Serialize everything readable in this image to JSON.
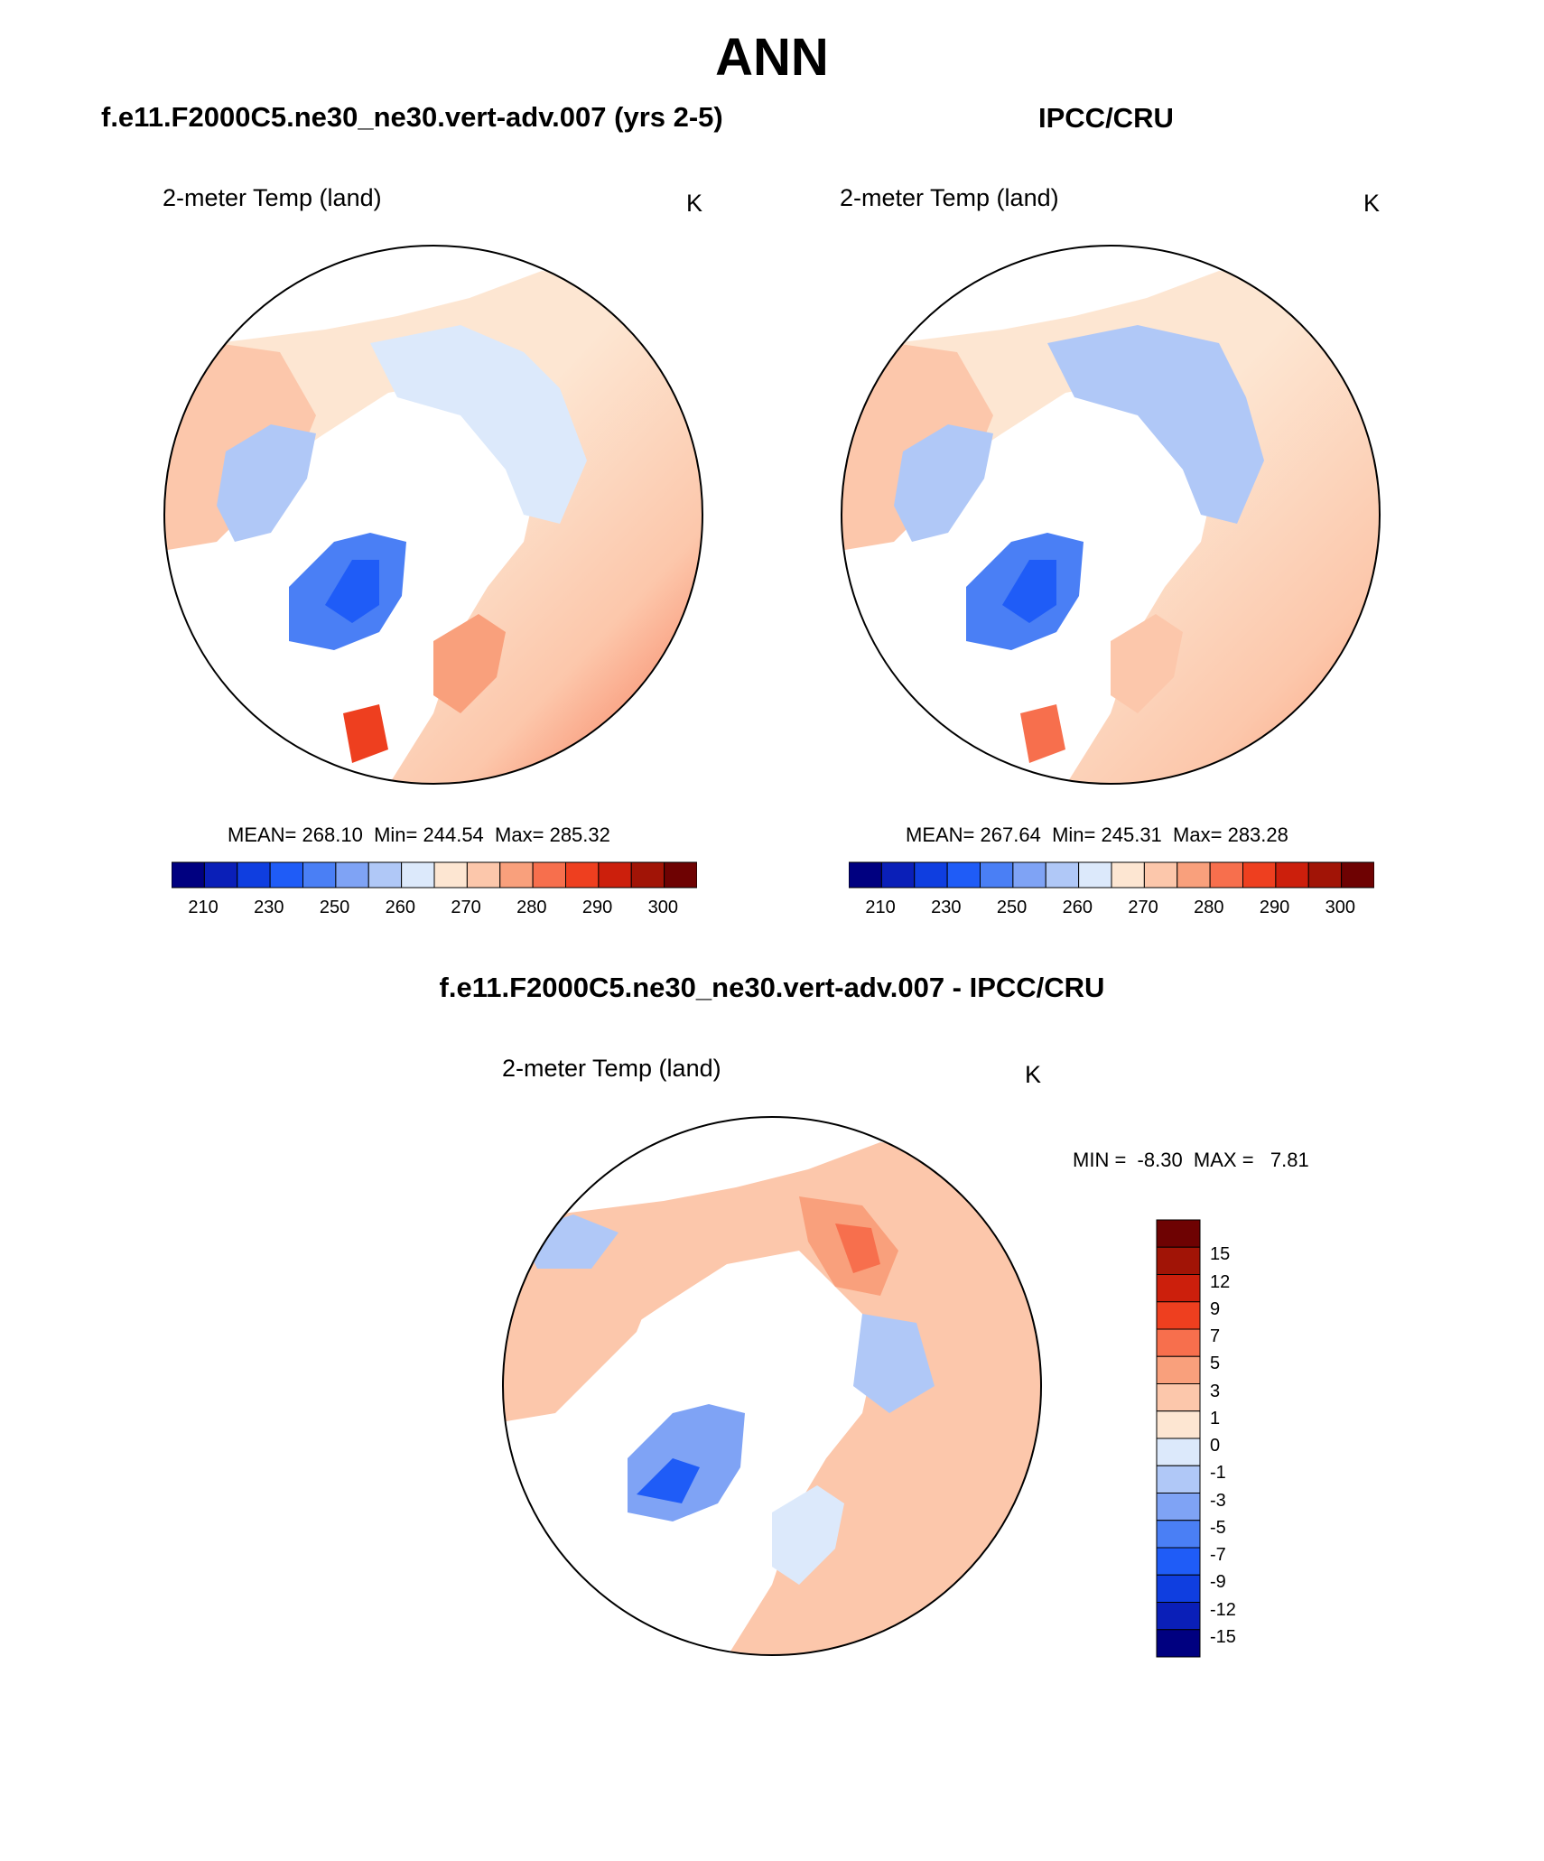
{
  "title": "ANN",
  "palette": {
    "abs": [
      "#000080",
      "#0a1fb8",
      "#0f3ee0",
      "#1f5cf7",
      "#4a7ff5",
      "#7fa3f5",
      "#b0c8f7",
      "#dce9fb",
      "#fde6d2",
      "#fcc7ab",
      "#f9a07c",
      "#f76f4d",
      "#ee3f1f",
      "#cc1f0c",
      "#a11406",
      "#6e0202"
    ],
    "diff": [
      "#000080",
      "#0a1fb8",
      "#0f3ee0",
      "#1f5cf7",
      "#4a7ff5",
      "#7fa3f5",
      "#b0c8f7",
      "#dce9fb",
      "#fde6d2",
      "#fcc7ab",
      "#f9a07c",
      "#f76f4d",
      "#ee3f1f",
      "#cc1f0c",
      "#a11406",
      "#6e0202"
    ]
  },
  "panels": {
    "model": {
      "title": "f.e11.F2000C5.ne30_ne30.vert-adv.007 (yrs 2-5)",
      "variable": "2-meter Temp (land)",
      "units": "K",
      "mean_label": "MEAN=",
      "mean": "268.10",
      "min_label": "Min=",
      "min": "244.54",
      "max_label": "Max=",
      "max": "285.32",
      "colorbar_ticks": [
        "210",
        "230",
        "250",
        "260",
        "270",
        "280",
        "290",
        "300"
      ]
    },
    "obs": {
      "title": "IPCC/CRU",
      "variable": "2-meter Temp (land)",
      "units": "K",
      "mean_label": "MEAN=",
      "mean": "267.64",
      "min_label": "Min=",
      "min": "245.31",
      "max_label": "Max=",
      "max": "283.28",
      "colorbar_ticks": [
        "210",
        "230",
        "250",
        "260",
        "270",
        "280",
        "290",
        "300"
      ]
    },
    "diff": {
      "title": "f.e11.F2000C5.ne30_ne30.vert-adv.007 - IPCC/CRU",
      "variable": "2-meter Temp (land)",
      "units": "K",
      "min_label": "MIN =",
      "min": "-8.30",
      "max_label": "MAX =",
      "max": "7.81",
      "colorbar_ticks": [
        "15",
        "12",
        "9",
        "7",
        "5",
        "3",
        "1",
        "0",
        "-1",
        "-3",
        "-5",
        "-7",
        "-9",
        "-12",
        "-15"
      ]
    }
  }
}
